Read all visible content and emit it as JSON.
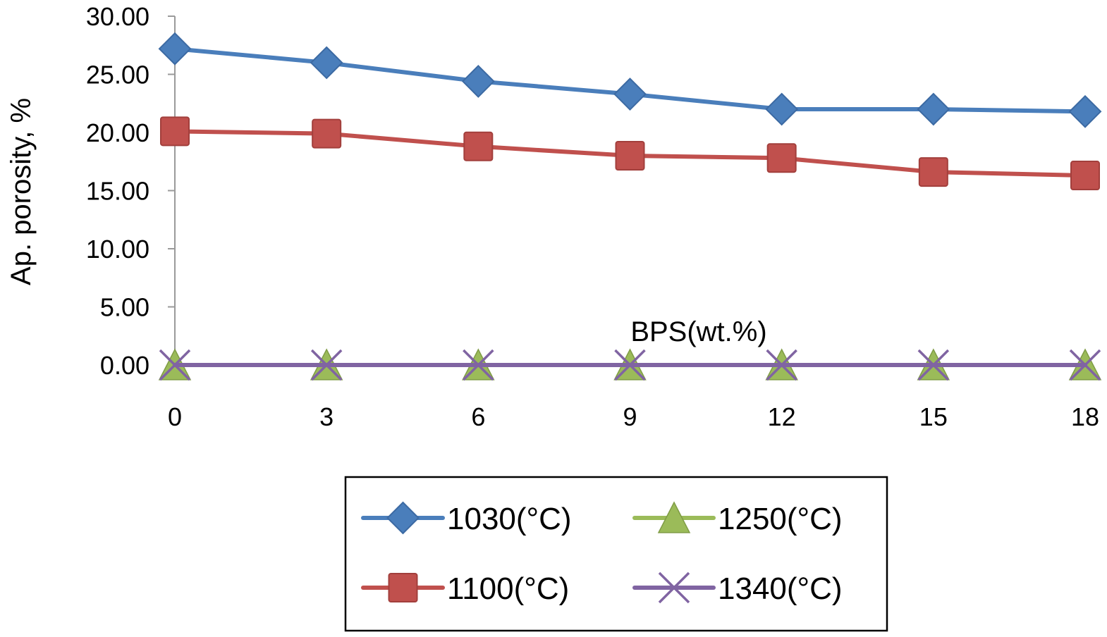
{
  "chart_data": {
    "type": "line",
    "xlabel": "BPS(wt.%)",
    "ylabel": "Ap. porosity, %",
    "x": [
      0,
      3,
      6,
      9,
      12,
      15,
      18
    ],
    "x_tick_labels": [
      "0",
      "3",
      "6",
      "9",
      "12",
      "15",
      "18"
    ],
    "ylim": [
      0,
      30
    ],
    "y_tick_labels": [
      "0.00",
      "5.00",
      "10.00",
      "15.00",
      "20.00",
      "25.00",
      "30.00"
    ],
    "grid": false,
    "legend_position": "bottom",
    "series": [
      {
        "name": "1030(°C)",
        "marker": "diamond",
        "color": "#4a7ebb",
        "values": [
          27.2,
          26.0,
          24.4,
          23.3,
          22.0,
          22.0,
          21.8
        ]
      },
      {
        "name": "1100(°C)",
        "marker": "square",
        "color": "#c0504d",
        "values": [
          20.1,
          19.9,
          18.8,
          18.0,
          17.8,
          16.6,
          16.3
        ]
      },
      {
        "name": "1250(°C)",
        "marker": "triangle",
        "color": "#9bbb59",
        "values": [
          0,
          0,
          0,
          0,
          0,
          0,
          0
        ]
      },
      {
        "name": "1340(°C)",
        "marker": "x",
        "color": "#8064a2",
        "values": [
          0,
          0,
          0,
          0,
          0,
          0,
          0
        ]
      }
    ]
  }
}
